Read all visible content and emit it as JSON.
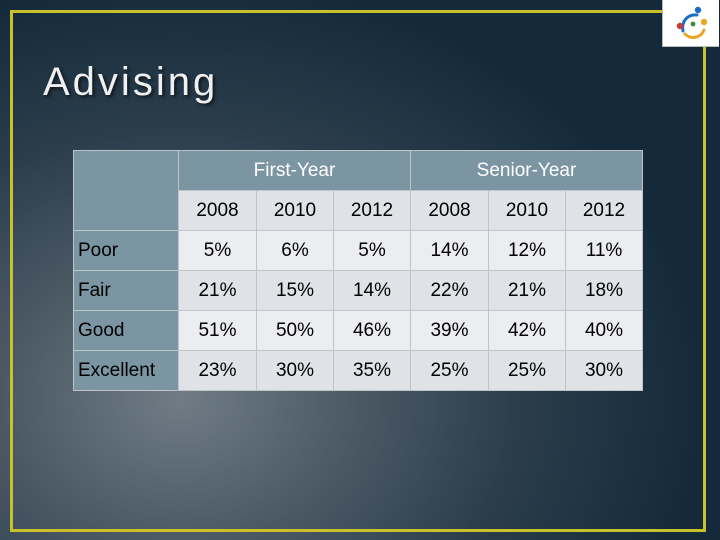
{
  "title": "Advising",
  "logo": {
    "icon": "people-circle-logo",
    "colors": [
      "#1a6fc4",
      "#e8a623",
      "#c93a3a",
      "#3a8a3a"
    ]
  },
  "table": {
    "groups": [
      "First-Year",
      "Senior-Year"
    ],
    "years": [
      "2008",
      "2010",
      "2012",
      "2008",
      "2010",
      "2012"
    ],
    "rows": [
      {
        "label": "Poor",
        "values": [
          "5%",
          "6%",
          "5%",
          "14%",
          "12%",
          "11%"
        ]
      },
      {
        "label": "Fair",
        "values": [
          "21%",
          "15%",
          "14%",
          "22%",
          "21%",
          "18%"
        ]
      },
      {
        "label": "Good",
        "values": [
          "51%",
          "50%",
          "46%",
          "39%",
          "42%",
          "40%"
        ]
      },
      {
        "label": "Excellent",
        "values": [
          "23%",
          "30%",
          "35%",
          "25%",
          "25%",
          "30%"
        ]
      }
    ]
  }
}
